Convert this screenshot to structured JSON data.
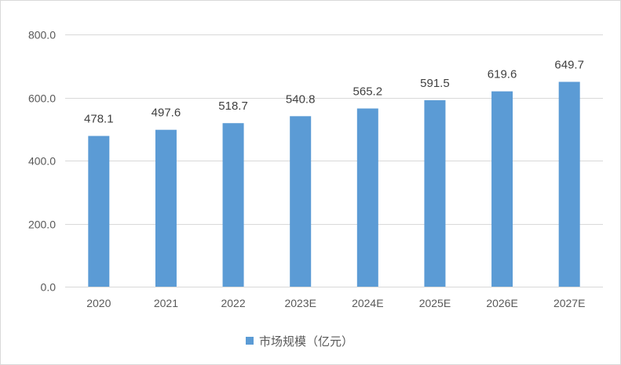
{
  "chart_data": {
    "type": "bar",
    "categories": [
      "2020",
      "2021",
      "2022",
      "2023E",
      "2024E",
      "2025E",
      "2026E",
      "2027E"
    ],
    "series": [
      {
        "name": "市场规模（亿元）",
        "values": [
          478.1,
          497.6,
          518.7,
          540.8,
          565.2,
          591.5,
          619.6,
          649.7
        ],
        "color": "#5B9BD5"
      }
    ],
    "data_labels": [
      "478.1",
      "497.6",
      "518.7",
      "540.8",
      "565.2",
      "591.5",
      "619.6",
      "649.7"
    ],
    "ylim": [
      0,
      800
    ],
    "yticks": [
      "0.0",
      "200.0",
      "400.0",
      "600.0",
      "800.0"
    ],
    "grid": true,
    "legend": "bottom",
    "title": "",
    "xlabel": "",
    "ylabel": ""
  }
}
